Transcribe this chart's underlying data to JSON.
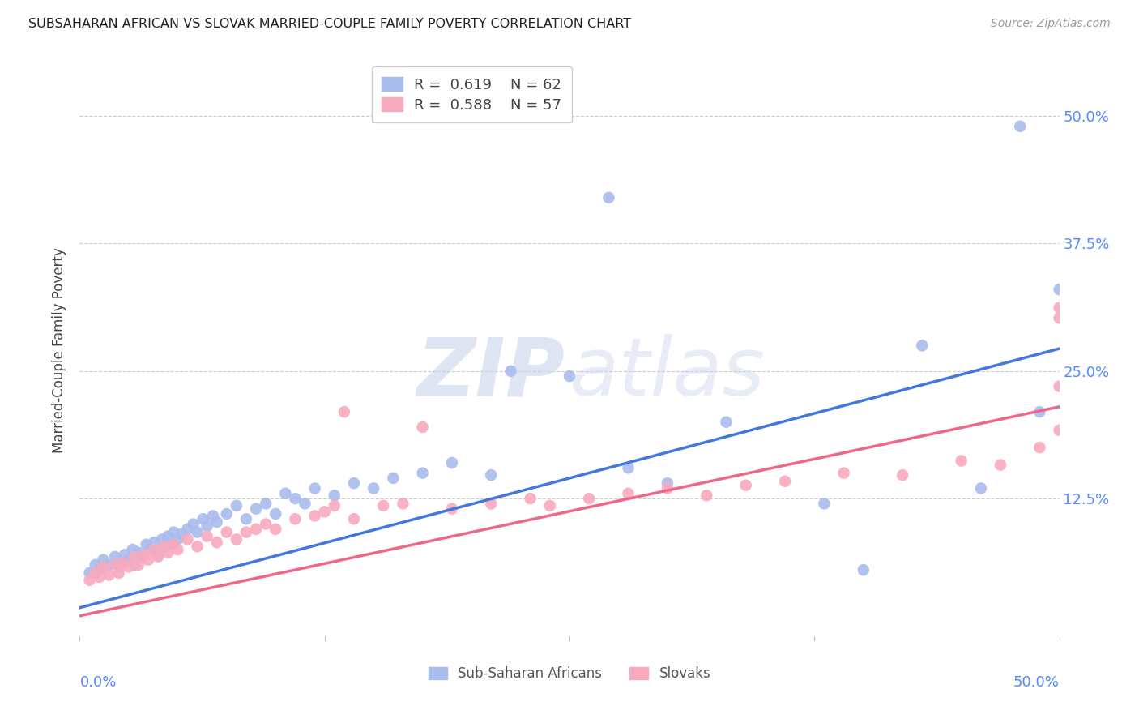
{
  "title": "SUBSAHARAN AFRICAN VS SLOVAK MARRIED-COUPLE FAMILY POVERTY CORRELATION CHART",
  "source": "Source: ZipAtlas.com",
  "ylabel": "Married-Couple Family Poverty",
  "ytick_labels": [
    "50.0%",
    "37.5%",
    "25.0%",
    "12.5%"
  ],
  "ytick_values": [
    0.5,
    0.375,
    0.25,
    0.125
  ],
  "xlim": [
    0.0,
    0.5
  ],
  "ylim": [
    -0.01,
    0.55
  ],
  "background_color": "#ffffff",
  "grid_color": "#cccccc",
  "tick_color": "#5588ff",
  "blue_line_color": "#4477dd",
  "pink_line_color": "#ee6688",
  "blue_scatter_color": "#aabcee",
  "pink_scatter_color": "#f8aabe",
  "blue_line_x": [
    0.0,
    0.5
  ],
  "blue_line_y": [
    0.018,
    0.272
  ],
  "pink_line_x": [
    0.0,
    0.5
  ],
  "pink_line_y": [
    0.01,
    0.215
  ],
  "blue_scatter_x": [
    0.005,
    0.008,
    0.01,
    0.012,
    0.015,
    0.018,
    0.02,
    0.022,
    0.023,
    0.025,
    0.027,
    0.028,
    0.03,
    0.032,
    0.034,
    0.036,
    0.038,
    0.04,
    0.042,
    0.043,
    0.045,
    0.047,
    0.048,
    0.05,
    0.052,
    0.055,
    0.058,
    0.06,
    0.063,
    0.065,
    0.068,
    0.07,
    0.075,
    0.08,
    0.085,
    0.09,
    0.095,
    0.1,
    0.105,
    0.11,
    0.115,
    0.12,
    0.13,
    0.14,
    0.15,
    0.16,
    0.175,
    0.19,
    0.21,
    0.22,
    0.25,
    0.27,
    0.28,
    0.3,
    0.33,
    0.38,
    0.4,
    0.43,
    0.46,
    0.48,
    0.49,
    0.5
  ],
  "blue_scatter_y": [
    0.052,
    0.06,
    0.055,
    0.065,
    0.06,
    0.068,
    0.058,
    0.062,
    0.07,
    0.065,
    0.075,
    0.06,
    0.072,
    0.068,
    0.08,
    0.075,
    0.082,
    0.07,
    0.085,
    0.078,
    0.088,
    0.08,
    0.092,
    0.085,
    0.09,
    0.095,
    0.1,
    0.092,
    0.105,
    0.098,
    0.108,
    0.102,
    0.11,
    0.118,
    0.105,
    0.115,
    0.12,
    0.11,
    0.13,
    0.125,
    0.12,
    0.135,
    0.128,
    0.14,
    0.135,
    0.145,
    0.15,
    0.16,
    0.148,
    0.25,
    0.245,
    0.42,
    0.155,
    0.14,
    0.2,
    0.12,
    0.055,
    0.275,
    0.135,
    0.49,
    0.21,
    0.33
  ],
  "pink_scatter_x": [
    0.005,
    0.008,
    0.01,
    0.012,
    0.015,
    0.018,
    0.02,
    0.022,
    0.025,
    0.028,
    0.03,
    0.033,
    0.035,
    0.038,
    0.04,
    0.043,
    0.045,
    0.048,
    0.05,
    0.055,
    0.06,
    0.065,
    0.07,
    0.075,
    0.08,
    0.085,
    0.09,
    0.095,
    0.1,
    0.11,
    0.12,
    0.125,
    0.13,
    0.135,
    0.14,
    0.155,
    0.165,
    0.175,
    0.19,
    0.21,
    0.23,
    0.24,
    0.26,
    0.28,
    0.3,
    0.32,
    0.34,
    0.36,
    0.39,
    0.42,
    0.45,
    0.47,
    0.49,
    0.5,
    0.5,
    0.5,
    0.5
  ],
  "pink_scatter_y": [
    0.045,
    0.052,
    0.048,
    0.058,
    0.05,
    0.06,
    0.052,
    0.062,
    0.058,
    0.068,
    0.06,
    0.07,
    0.065,
    0.075,
    0.068,
    0.078,
    0.072,
    0.08,
    0.075,
    0.085,
    0.078,
    0.088,
    0.082,
    0.092,
    0.085,
    0.092,
    0.095,
    0.1,
    0.095,
    0.105,
    0.108,
    0.112,
    0.118,
    0.21,
    0.105,
    0.118,
    0.12,
    0.195,
    0.115,
    0.12,
    0.125,
    0.118,
    0.125,
    0.13,
    0.135,
    0.128,
    0.138,
    0.142,
    0.15,
    0.148,
    0.162,
    0.158,
    0.175,
    0.312,
    0.235,
    0.192,
    0.302
  ]
}
